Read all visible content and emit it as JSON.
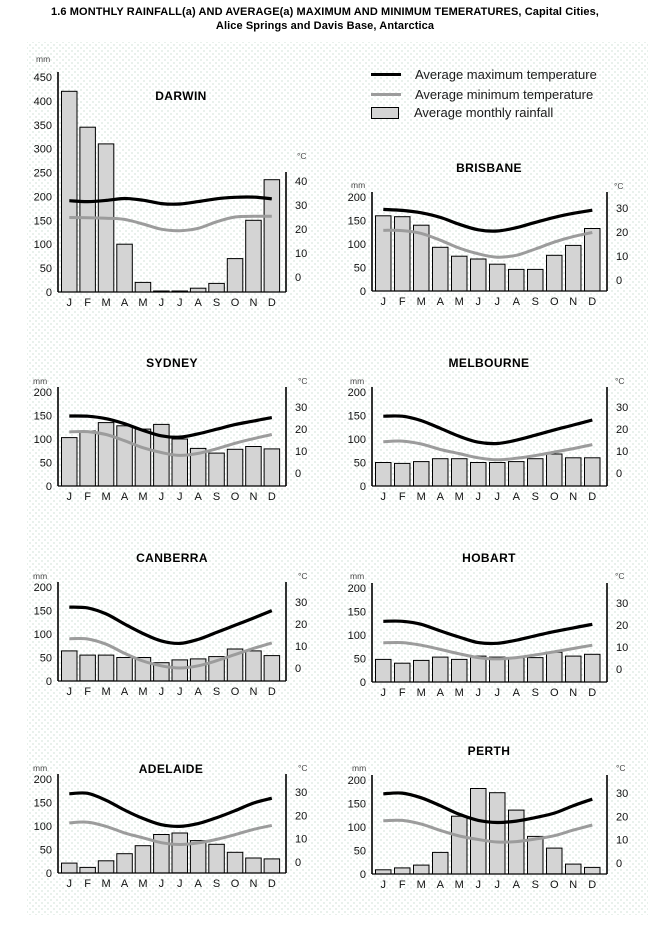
{
  "page": {
    "title_line1": "1.6 MONTHLY RAINFALL(a) AND AVERAGE(a) MAXIMUM AND MINIMUM TEMERATURES, Capital Cities,",
    "title_line2": "Alice Springs and Davis Base, Antarctica"
  },
  "legend": {
    "items": [
      {
        "label": "Average maximum temperature",
        "swatch": "black-line"
      },
      {
        "label": "Average minimum temperature",
        "swatch": "gray-line"
      },
      {
        "label": "Average monthly rainfall",
        "swatch": "gray-box"
      }
    ]
  },
  "units": {
    "rainfall": "mm",
    "temperature": "°C"
  },
  "months": [
    "J",
    "F",
    "M",
    "A",
    "M",
    "J",
    "J",
    "A",
    "S",
    "O",
    "N",
    "D"
  ],
  "colors": {
    "max_line": "#000000",
    "min_line": "#9c9c9c",
    "bar_fill": "#d4d4d4",
    "bar_stroke": "#000000",
    "axis": "#000000",
    "tick_text": "#111111",
    "unit_text": "#4a4a4a"
  },
  "chart_data": [
    {
      "type": "bar",
      "city": "DARWIN",
      "rain_axis": {
        "unit": "mm",
        "min": 0,
        "max": 450,
        "step": 50
      },
      "temp_axis": {
        "unit": "°C",
        "ticks": [
          0,
          10,
          20,
          30,
          40
        ]
      },
      "rainfall_mm": [
        420,
        345,
        310,
        100,
        20,
        2,
        1,
        8,
        18,
        70,
        150,
        235
      ],
      "avg_max_temp_c": [
        31.8,
        31.4,
        31.9,
        32.7,
        32.0,
        30.6,
        30.4,
        31.4,
        32.6,
        33.2,
        33.3,
        32.6
      ],
      "avg_min_temp_c": [
        24.8,
        24.7,
        24.5,
        24.0,
        22.1,
        19.9,
        19.3,
        20.3,
        23.0,
        25.0,
        25.3,
        25.3
      ]
    },
    {
      "type": "bar",
      "city": "BRISBANE",
      "rain_axis": {
        "unit": "mm",
        "min": 0,
        "max": 200,
        "step": 50
      },
      "temp_axis": {
        "unit": "°C",
        "ticks": [
          0,
          10,
          20,
          30
        ]
      },
      "rainfall_mm": [
        160,
        158,
        140,
        93,
        74,
        68,
        57,
        46,
        46,
        76,
        97,
        133
      ],
      "avg_max_temp_c": [
        29.4,
        29.0,
        28.0,
        26.1,
        23.2,
        20.9,
        20.4,
        21.8,
        24.0,
        26.1,
        27.8,
        29.1
      ],
      "avg_min_temp_c": [
        20.7,
        20.6,
        19.4,
        16.6,
        13.3,
        10.9,
        9.5,
        10.3,
        12.9,
        15.8,
        18.1,
        19.8
      ]
    },
    {
      "type": "bar",
      "city": "SYDNEY",
      "rain_axis": {
        "unit": "mm",
        "min": 0,
        "max": 200,
        "step": 50
      },
      "temp_axis": {
        "unit": "°C",
        "ticks": [
          0,
          10,
          20,
          30
        ]
      },
      "rainfall_mm": [
        103,
        117,
        135,
        128,
        121,
        131,
        100,
        80,
        70,
        78,
        84,
        79
      ],
      "avg_max_temp_c": [
        25.9,
        25.8,
        24.7,
        22.4,
        19.4,
        16.9,
        16.3,
        17.8,
        19.9,
        22.0,
        23.6,
        25.2
      ],
      "avg_min_temp_c": [
        18.7,
        18.8,
        17.5,
        14.7,
        11.5,
        9.3,
        8.0,
        8.9,
        11.0,
        13.5,
        15.6,
        17.5
      ]
    },
    {
      "type": "bar",
      "city": "MELBOURNE",
      "rain_axis": {
        "unit": "mm",
        "min": 0,
        "max": 200,
        "step": 50
      },
      "temp_axis": {
        "unit": "°C",
        "ticks": [
          0,
          10,
          20,
          30
        ]
      },
      "rainfall_mm": [
        50,
        48,
        52,
        58,
        58,
        50,
        50,
        52,
        58,
        68,
        60,
        60
      ],
      "avg_max_temp_c": [
        25.8,
        25.8,
        23.8,
        20.3,
        16.7,
        14.0,
        13.4,
        14.9,
        17.2,
        19.6,
        21.8,
        24.1
      ],
      "avg_min_temp_c": [
        14.2,
        14.5,
        13.2,
        10.7,
        8.8,
        6.9,
        6.0,
        6.7,
        7.9,
        9.5,
        11.1,
        12.9
      ]
    },
    {
      "type": "bar",
      "city": "CANBERRA",
      "rain_axis": {
        "unit": "mm",
        "min": 0,
        "max": 200,
        "step": 50
      },
      "temp_axis": {
        "unit": "°C",
        "ticks": [
          0,
          10,
          20,
          30
        ]
      },
      "rainfall_mm": [
        64,
        55,
        55,
        50,
        50,
        39,
        45,
        47,
        52,
        68,
        64,
        54
      ],
      "avg_max_temp_c": [
        27.7,
        27.3,
        24.6,
        20.0,
        15.7,
        12.3,
        11.2,
        13.0,
        16.2,
        19.4,
        22.7,
        26.1
      ],
      "avg_min_temp_c": [
        13.3,
        13.2,
        10.8,
        6.7,
        3.2,
        1.0,
        0.0,
        1.0,
        3.3,
        6.1,
        8.9,
        11.4
      ]
    },
    {
      "type": "bar",
      "city": "HOBART",
      "rain_axis": {
        "unit": "mm",
        "min": 0,
        "max": 200,
        "step": 50
      },
      "temp_axis": {
        "unit": "°C",
        "ticks": [
          0,
          10,
          20,
          30
        ]
      },
      "rainfall_mm": [
        48,
        40,
        46,
        53,
        48,
        55,
        53,
        52,
        52,
        63,
        55,
        59
      ],
      "avg_max_temp_c": [
        21.7,
        21.7,
        20.3,
        17.3,
        14.5,
        12.0,
        11.7,
        13.1,
        15.1,
        17.0,
        18.7,
        20.3
      ],
      "avg_min_temp_c": [
        11.9,
        12.0,
        10.8,
        8.9,
        6.9,
        5.2,
        4.6,
        5.2,
        6.4,
        7.8,
        9.3,
        10.8
      ]
    },
    {
      "type": "bar",
      "city": "ADELAIDE",
      "rain_axis": {
        "unit": "mm",
        "min": 0,
        "max": 200,
        "step": 50
      },
      "temp_axis": {
        "unit": "°C",
        "ticks": [
          0,
          10,
          20,
          30
        ]
      },
      "rainfall_mm": [
        21,
        12,
        26,
        41,
        58,
        82,
        85,
        69,
        61,
        44,
        32,
        30
      ],
      "avg_max_temp_c": [
        29.3,
        29.5,
        26.5,
        22.3,
        18.7,
        16.0,
        15.3,
        16.5,
        19.0,
        22.0,
        25.3,
        27.4
      ],
      "avg_min_temp_c": [
        16.8,
        17.1,
        15.3,
        12.5,
        10.4,
        8.3,
        7.5,
        8.2,
        9.7,
        11.7,
        14.0,
        15.7
      ]
    },
    {
      "type": "bar",
      "city": "PERTH",
      "rain_axis": {
        "unit": "mm",
        "min": 0,
        "max": 200,
        "step": 50
      },
      "temp_axis": {
        "unit": "°C",
        "ticks": [
          0,
          10,
          20,
          30
        ]
      },
      "rainfall_mm": [
        9,
        13,
        19,
        46,
        123,
        182,
        173,
        136,
        80,
        55,
        21,
        14
      ],
      "avg_max_temp_c": [
        29.7,
        30.0,
        28.0,
        24.6,
        20.9,
        18.3,
        17.4,
        18.0,
        19.5,
        21.4,
        24.6,
        27.4
      ],
      "avg_min_temp_c": [
        18.1,
        18.3,
        16.7,
        14.0,
        11.6,
        10.1,
        9.0,
        9.2,
        10.3,
        11.7,
        14.1,
        16.3
      ]
    }
  ]
}
